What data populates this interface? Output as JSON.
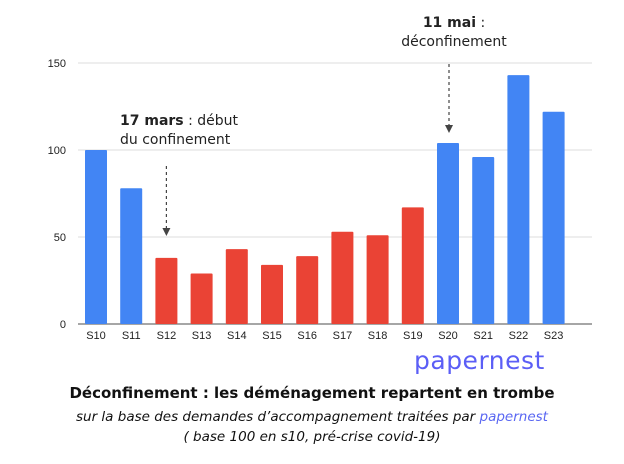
{
  "chart_data": {
    "type": "bar",
    "categories": [
      "S10",
      "S11",
      "S12",
      "S13",
      "S14",
      "S15",
      "S16",
      "S17",
      "S18",
      "S19",
      "S20",
      "S21",
      "S22",
      "S23"
    ],
    "values": [
      100,
      78,
      38,
      29,
      43,
      34,
      39,
      53,
      51,
      67,
      104,
      96,
      143,
      122
    ],
    "colors": [
      "#4285f4",
      "#4285f4",
      "#ea4335",
      "#ea4335",
      "#ea4335",
      "#ea4335",
      "#ea4335",
      "#ea4335",
      "#ea4335",
      "#ea4335",
      "#4285f4",
      "#4285f4",
      "#4285f4",
      "#4285f4"
    ],
    "ylim": [
      0,
      150
    ],
    "yticks": [
      0,
      50,
      100,
      150
    ],
    "grid": true,
    "annotations": [
      {
        "bold": "17 mars",
        "text": " : début",
        "line2": "du confinement",
        "category": "S12"
      },
      {
        "bold": "11 mai",
        "text": " :",
        "line2": "déconfinement",
        "category": "S20"
      }
    ]
  },
  "logo": "papernest",
  "caption": {
    "title": "Déconfinement : les déménagement repartent en trombe",
    "subtitle": "sur la base des demandes d’accompagnement traitées par ",
    "subtitle_brand": "papernest",
    "note": "( base 100 en s10, pré-crise covid-19)"
  }
}
